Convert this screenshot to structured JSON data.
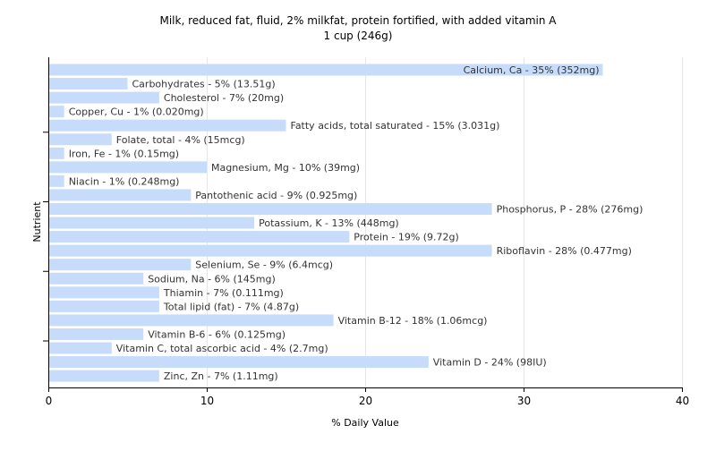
{
  "chart_data": {
    "type": "bar",
    "orientation": "horizontal",
    "title": "Milk, reduced fat, fluid, 2% milkfat, protein fortified, with added vitamin A",
    "subtitle": "1 cup (246g)",
    "xlabel": "% Daily Value",
    "ylabel": "Nutrient",
    "xlim": [
      0,
      40
    ],
    "xticks": [
      0,
      10,
      20,
      30,
      40
    ],
    "grid": true,
    "legend": "none",
    "bar_color": "#c6dcfa",
    "grid_color": "#e6e6e6",
    "axis_color": "#000000",
    "categories": [
      "Calcium, Ca",
      "Carbohydrates",
      "Cholesterol",
      "Copper, Cu",
      "Fatty acids, total saturated",
      "Folate, total",
      "Iron, Fe",
      "Magnesium, Mg",
      "Niacin",
      "Pantothenic acid",
      "Phosphorus, P",
      "Potassium, K",
      "Protein",
      "Riboflavin",
      "Selenium, Se",
      "Sodium, Na",
      "Thiamin",
      "Total lipid (fat)",
      "Vitamin B-12",
      "Vitamin B-6",
      "Vitamin C, total ascorbic acid",
      "Vitamin D",
      "Zinc, Zn"
    ],
    "values": [
      35,
      5,
      7,
      1,
      15,
      4,
      1,
      10,
      1,
      9,
      28,
      13,
      19,
      28,
      9,
      6,
      7,
      7,
      18,
      6,
      4,
      24,
      7
    ],
    "labels": [
      "Calcium, Ca - 35% (352mg)",
      "Carbohydrates - 5% (13.51g)",
      "Cholesterol - 7% (20mg)",
      "Copper, Cu - 1% (0.020mg)",
      "Fatty acids, total saturated - 15% (3.031g)",
      "Folate, total - 4% (15mcg)",
      "Iron, Fe - 1% (0.15mg)",
      "Magnesium, Mg - 10% (39mg)",
      "Niacin - 1% (0.248mg)",
      "Pantothenic acid - 9% (0.925mg)",
      "Phosphorus, P - 28% (276mg)",
      "Potassium, K - 13% (448mg)",
      "Protein - 19% (9.72g)",
      "Riboflavin - 28% (0.477mg)",
      "Selenium, Se - 9% (6.4mcg)",
      "Sodium, Na - 6% (145mg)",
      "Thiamin - 7% (0.111mg)",
      "Total lipid (fat) - 7% (4.87g)",
      "Vitamin B-12 - 18% (1.06mcg)",
      "Vitamin B-6 - 6% (0.125mg)",
      "Vitamin C, total ascorbic acid - 4% (2.7mg)",
      "Vitamin D - 24% (98IU)",
      "Zinc, Zn - 7% (1.11mg)"
    ]
  }
}
